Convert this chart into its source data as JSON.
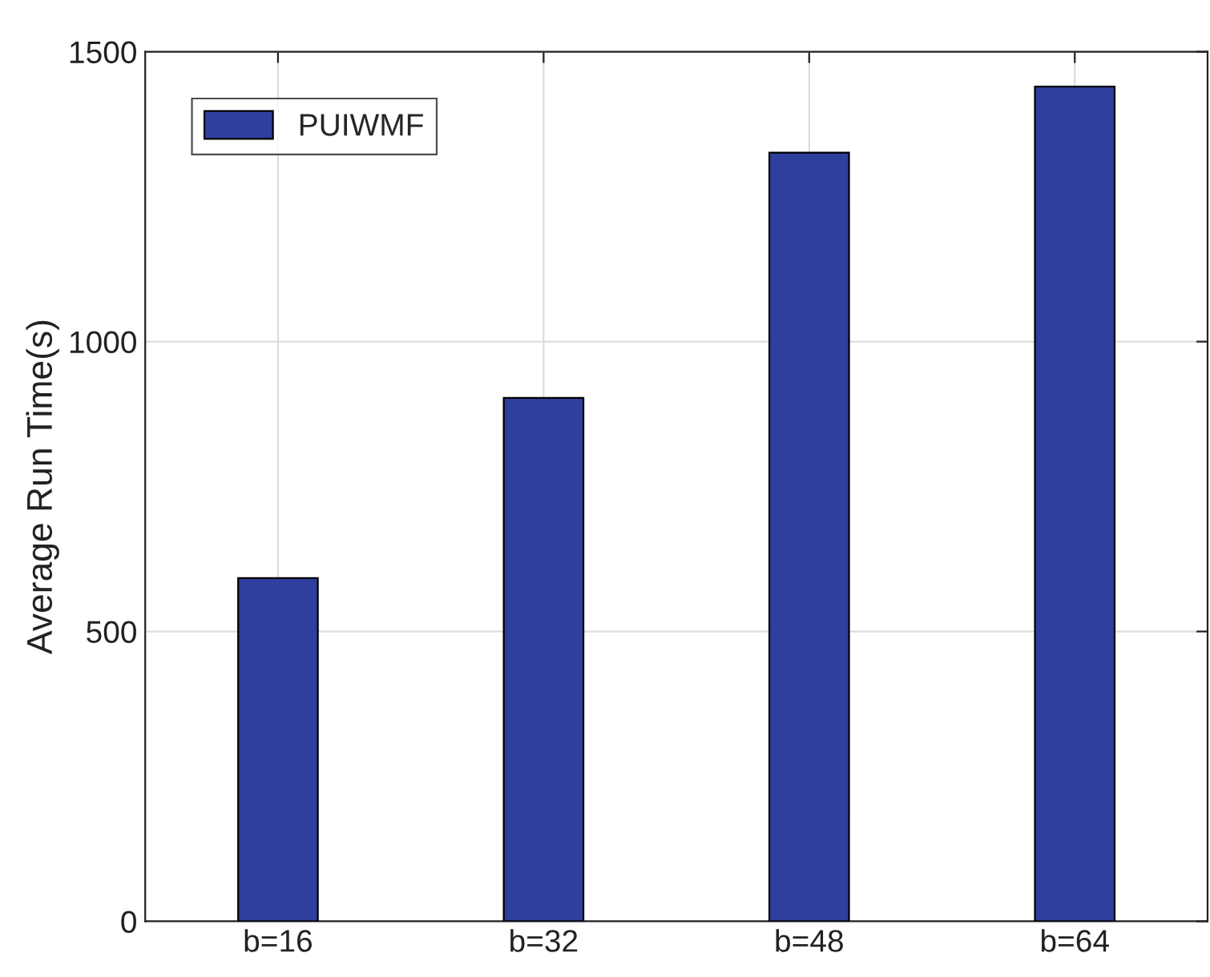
{
  "chart_data": {
    "type": "bar",
    "ylabel": "Average Run Time(s)",
    "categories": [
      "b=16",
      "b=32",
      "b=48",
      "b=64"
    ],
    "series": [
      {
        "name": "PUIWMF",
        "color": "#2e3f9e",
        "values": [
          592,
          903,
          1326,
          1440
        ]
      }
    ],
    "ylim": [
      0,
      1500
    ],
    "yticks": [
      0,
      500,
      1000,
      1500
    ],
    "grid": true,
    "legend": "top left"
  }
}
